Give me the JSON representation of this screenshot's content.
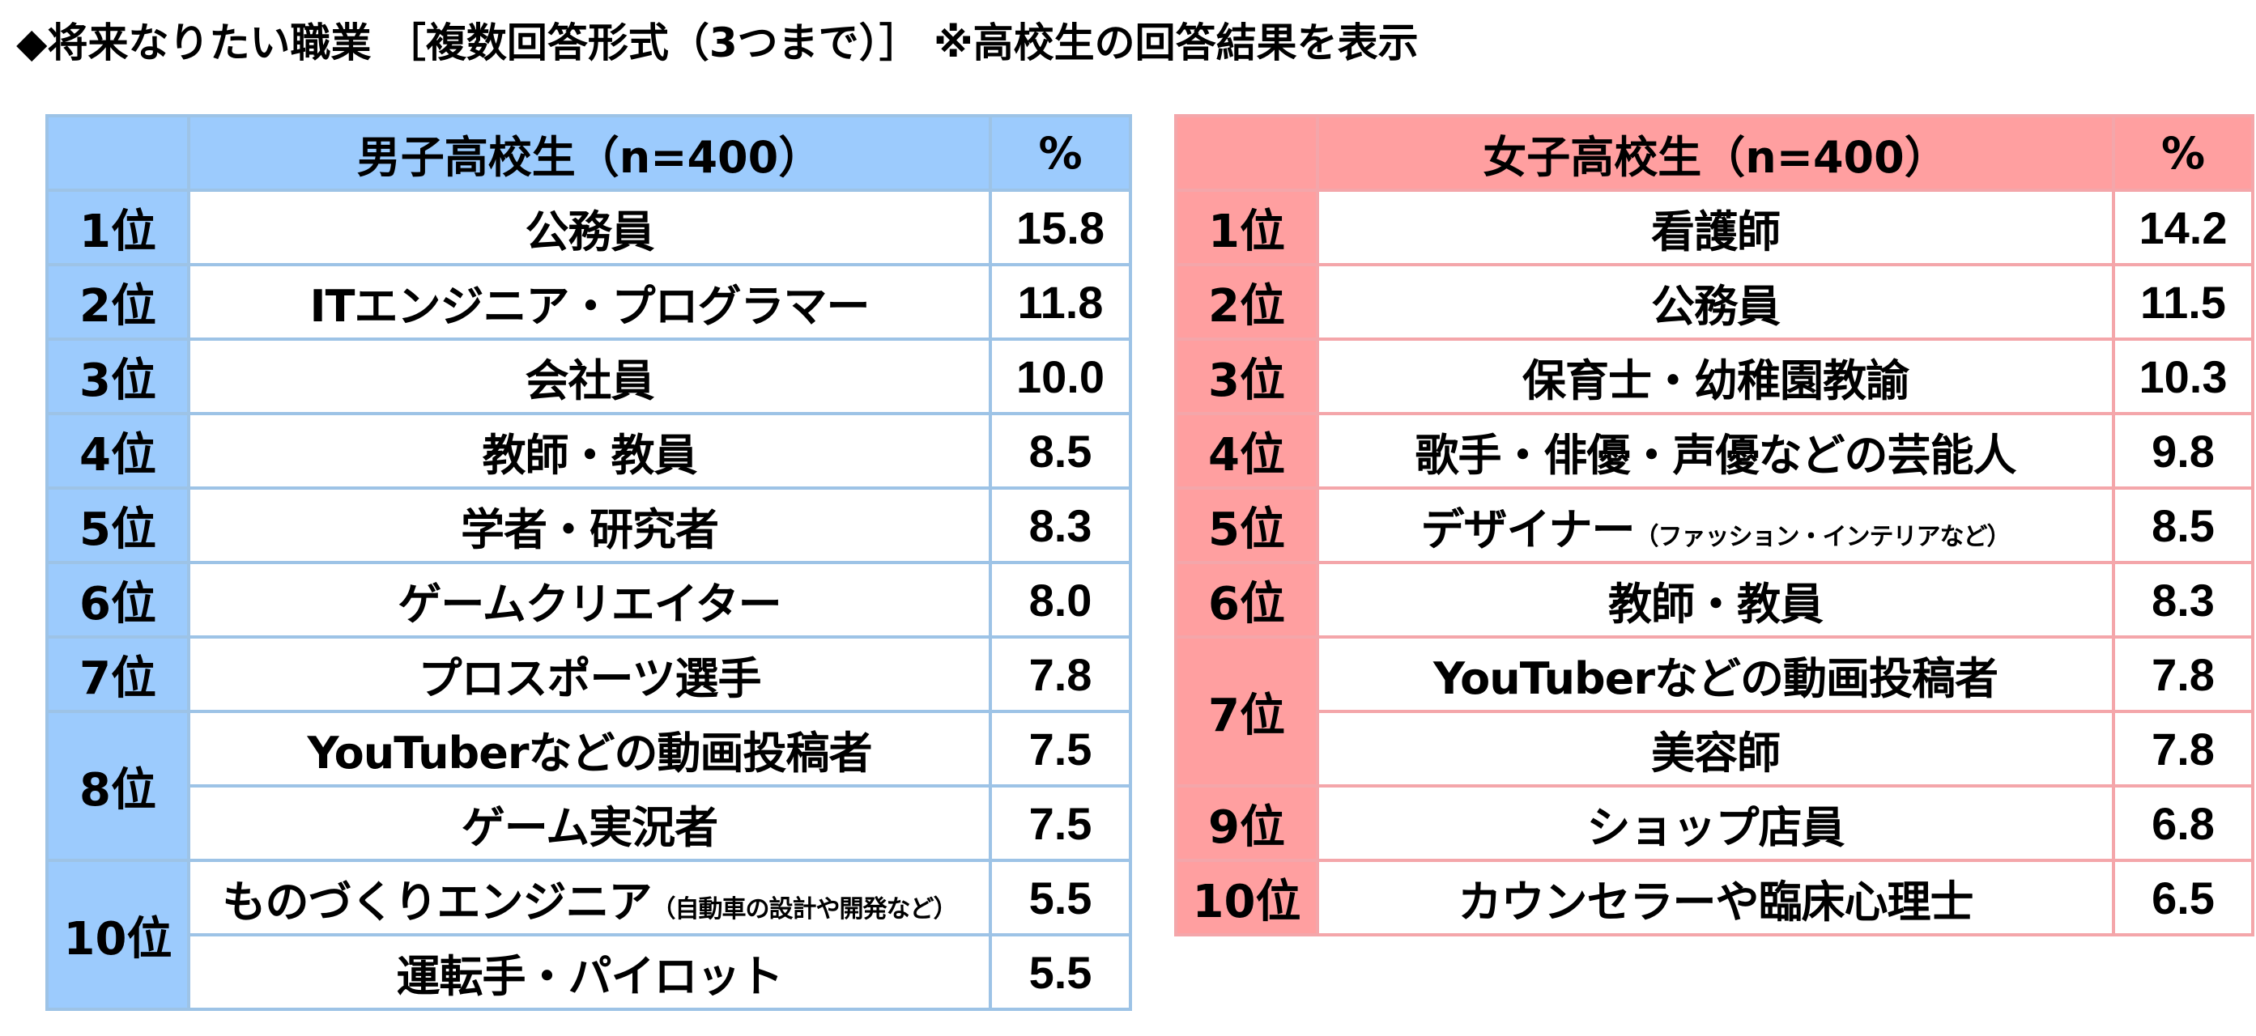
{
  "title": "◆将来なりたい職業 ［複数回答形式（3つまで）］ ※高校生の回答結果を表示",
  "male": {
    "header": "男子高校生（n=400）",
    "pct_header": "%",
    "rows": [
      {
        "rank": "1位",
        "job": "公務員",
        "pct": "15.8"
      },
      {
        "rank": "2位",
        "job": "ITエンジニア・プログラマー",
        "pct": "11.8"
      },
      {
        "rank": "3位",
        "job": "会社員",
        "pct": "10.0"
      },
      {
        "rank": "4位",
        "job": "教師・教員",
        "pct": "8.5"
      },
      {
        "rank": "5位",
        "job": "学者・研究者",
        "pct": "8.3"
      },
      {
        "rank": "6位",
        "job": "ゲームクリエイター",
        "pct": "8.0"
      },
      {
        "rank": "7位",
        "job": "プロスポーツ選手",
        "pct": "7.8"
      },
      {
        "rank": "8位",
        "job": "YouTuberなどの動画投稿者",
        "pct": "7.5"
      },
      {
        "job": "ゲーム実況者",
        "pct": "7.5"
      },
      {
        "rank": "10位",
        "job": "ものづくりエンジニア",
        "note": "（自動車の設計や開発など）",
        "pct": "5.5"
      },
      {
        "job": "運転手・パイロット",
        "pct": "5.5"
      }
    ]
  },
  "female": {
    "header": "女子高校生（n=400）",
    "pct_header": "%",
    "rows": [
      {
        "rank": "1位",
        "job": "看護師",
        "pct": "14.2"
      },
      {
        "rank": "2位",
        "job": "公務員",
        "pct": "11.5"
      },
      {
        "rank": "3位",
        "job": "保育士・幼稚園教諭",
        "pct": "10.3"
      },
      {
        "rank": "4位",
        "job": "歌手・俳優・声優などの芸能人",
        "pct": "9.8"
      },
      {
        "rank": "5位",
        "job": "デザイナー",
        "note": "（ファッション・インテリアなど）",
        "pct": "8.5"
      },
      {
        "rank": "6位",
        "job": "教師・教員",
        "pct": "8.3"
      },
      {
        "rank": "7位",
        "job": "YouTuberなどの動画投稿者",
        "pct": "7.8"
      },
      {
        "job": "美容師",
        "pct": "7.8"
      },
      {
        "rank": "9位",
        "job": "ショップ店員",
        "pct": "6.8"
      },
      {
        "rank": "10位",
        "job": "カウンセラーや臨床心理士",
        "pct": "6.5"
      }
    ]
  }
}
